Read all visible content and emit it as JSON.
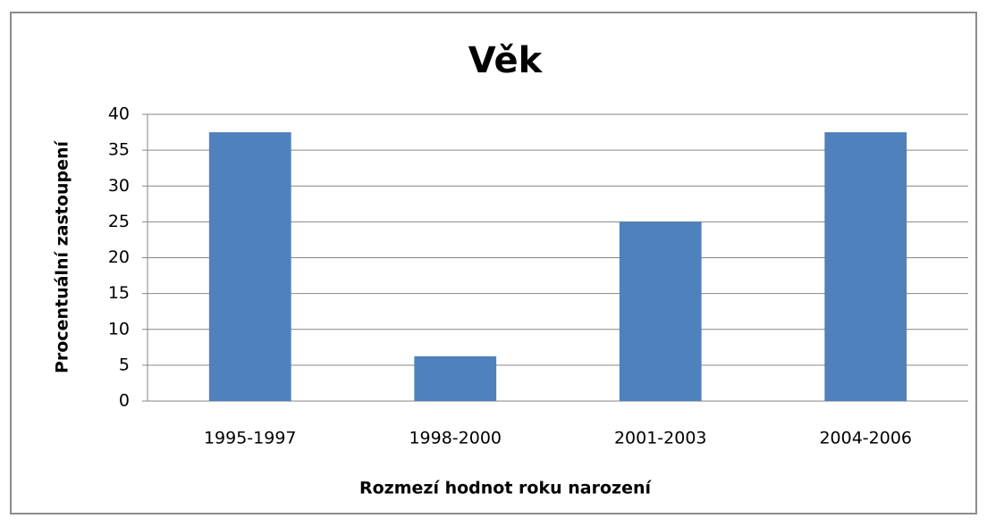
{
  "chart_data": {
    "type": "bar",
    "title": "Věk",
    "x_label": "Rozmezí hodnot roku narození",
    "y_label": "Procentuální zastoupení",
    "categories": [
      "1995-1997",
      "1998-2000",
      "2001-2003",
      "2004-2006"
    ],
    "values": [
      37.5,
      6.25,
      25,
      37.5
    ],
    "color": "#4f81bd",
    "ylim": [
      0,
      40
    ],
    "yticks": [
      0,
      5,
      10,
      15,
      20,
      25,
      30,
      35,
      40
    ],
    "grid": true
  }
}
